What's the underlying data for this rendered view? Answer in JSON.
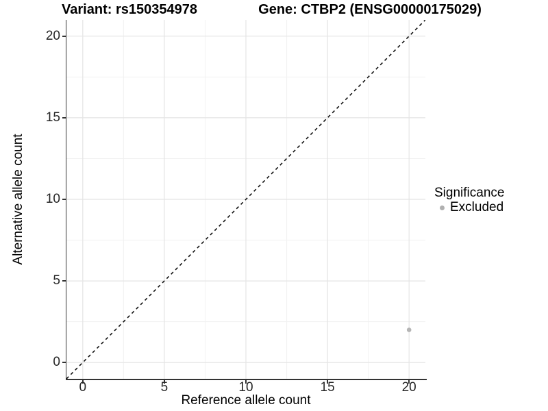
{
  "chart_data": {
    "type": "scatter",
    "title_left": "Variant: rs150354978",
    "title_right": "Gene: CTBP2 (ENSG00000175029)",
    "xlabel": "Reference allele count",
    "ylabel": "Alternative allele count",
    "xlim": [
      -1,
      21
    ],
    "ylim": [
      -1,
      21
    ],
    "x_ticks": [
      0,
      5,
      10,
      15,
      20
    ],
    "x_tick_labels": [
      "0",
      "5",
      "10",
      "15",
      "20"
    ],
    "y_ticks": [
      0,
      5,
      10,
      15,
      20
    ],
    "y_tick_labels": [
      "0",
      "5",
      "10",
      "15",
      "20"
    ],
    "x_minor_ticks": [
      2.5,
      7.5,
      12.5,
      17.5
    ],
    "y_minor_ticks": [
      2.5,
      7.5,
      12.5,
      17.5
    ],
    "grid": "major+minor",
    "reference_line": {
      "type": "identity",
      "from": [
        -1,
        -1
      ],
      "to": [
        21,
        21
      ],
      "style": "dashed",
      "color": "#111111"
    },
    "series": [
      {
        "name": "Excluded",
        "color": "#b5b5b5",
        "marker": "circle",
        "marker_radius": 3.3,
        "points": [
          [
            20,
            2
          ]
        ]
      }
    ],
    "legend": {
      "title": "Significance",
      "position": "right",
      "items": [
        {
          "label": "Excluded",
          "color": "#b0b0b0"
        }
      ]
    }
  },
  "colors": {
    "background": "#ffffff",
    "axis_line": "#333333",
    "tick_label": "#262626",
    "grid_major": "#e4e4e4",
    "grid_minor": "#f1f1f1"
  }
}
